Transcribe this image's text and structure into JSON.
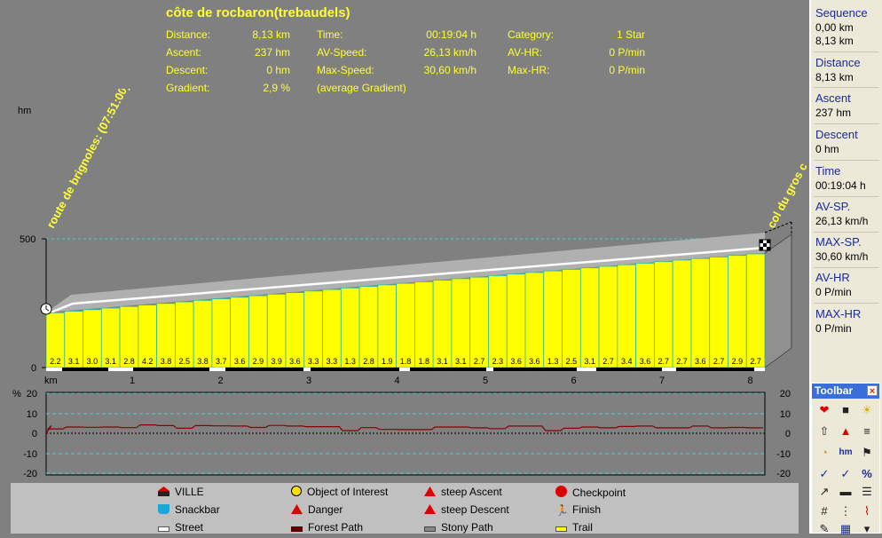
{
  "route": {
    "title": "côte de rocbaron(trebaudels)"
  },
  "stats": {
    "distance_label": "Distance:",
    "distance": "8,13 km",
    "ascent_label": "Ascent:",
    "ascent": "237 hm",
    "descent_label": "Descent:",
    "descent": "0 hm",
    "gradient_label": "Gradient:",
    "gradient": "2,9 %",
    "time_label": "Time:",
    "time": "00:19:04 h",
    "avspeed_label": "AV-Speed:",
    "avspeed": "26,13 km/h",
    "maxspeed_label": "Max-Speed:",
    "maxspeed": "30,60 km/h",
    "avg_gradient_note": "(average Gradient)",
    "category_label": "Category:",
    "category": "1 Star",
    "avhr_label": "AV-HR:",
    "avhr": "0 P/min",
    "maxhr_label": "Max-HR:",
    "maxhr": "0 P/min"
  },
  "profile": {
    "y_unit": "hm",
    "y_ticks": [
      "500",
      "0"
    ],
    "x_unit": "km",
    "x_ticks": [
      "1",
      "2",
      "3",
      "4",
      "5",
      "6",
      "7",
      "8"
    ],
    "start_waypoint": "route de brignoles: (07:51:00)",
    "end_waypoint": "col du gros c",
    "segment_gradients": [
      "2.2",
      "3.1",
      "3.0",
      "3.1",
      "2.8",
      "4.2",
      "3.8",
      "2.5",
      "3.8",
      "3.7",
      "3.6",
      "2.9",
      "3.9",
      "3.6",
      "3.3",
      "3.3",
      "1.3",
      "2.8",
      "1.9",
      "1.8",
      "1.8",
      "3.1",
      "3.1",
      "2.7",
      "2.3",
      "3.6",
      "3.6",
      "1.3",
      "2.5",
      "3.1",
      "2.7",
      "3.4",
      "3.6",
      "2.7",
      "2.7",
      "3.6",
      "2.7",
      "2.9",
      "2.7"
    ]
  },
  "gradient_chart": {
    "unit": "%",
    "left_ticks": [
      "20",
      "10",
      "0",
      "-10",
      "-20"
    ],
    "right_ticks": [
      "20",
      "10",
      "0",
      "-10",
      "-20"
    ]
  },
  "sidebar": {
    "sequence_label": "Sequence",
    "sequence_from": "0,00 km",
    "sequence_to": "8,13 km",
    "distance_label": "Distance",
    "distance": "8,13 km",
    "ascent_label": "Ascent",
    "ascent": "237 hm",
    "descent_label": "Descent",
    "descent": "0 hm",
    "time_label": "Time",
    "time": "00:19:04 h",
    "avsp_label": "AV-SP.",
    "avsp": "26,13 km/h",
    "maxsp_label": "MAX-SP.",
    "maxsp": "30,60 km/h",
    "avhr_label": "AV-HR",
    "avhr": "0 P/min",
    "maxhr_label": "MAX-HR",
    "maxhr": "0 P/min"
  },
  "toolbar": {
    "title": "Toolbar",
    "close": "×",
    "hm_label": "hm",
    "pct_label": "%"
  },
  "legend": {
    "ville": "VILLE",
    "snackbar": "Snackbar",
    "street": "Street",
    "object": "Object of Interest",
    "danger": "Danger",
    "forest": "Forest Path",
    "steep_ascent": "steep Ascent",
    "steep_descent": "steep Descent",
    "stony": "Stony Path",
    "checkpoint": "Checkpoint",
    "finish": "Finish",
    "trail": "Trail"
  }
}
